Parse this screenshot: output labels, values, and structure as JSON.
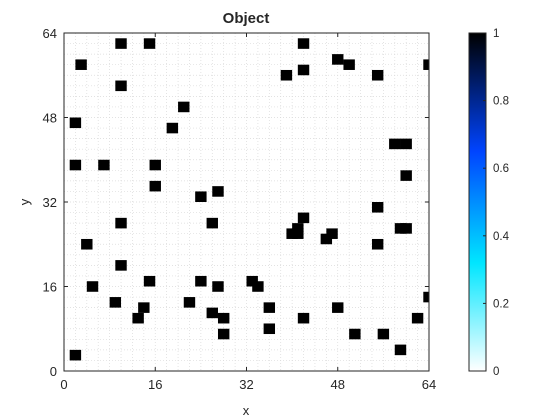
{
  "chart_data": {
    "type": "heatmap",
    "title": "Object",
    "xlabel": "x",
    "ylabel": "y",
    "xlim": [
      0,
      64
    ],
    "ylim": [
      0,
      64
    ],
    "xticks": [
      0,
      16,
      32,
      48,
      64
    ],
    "yticks": [
      0,
      16,
      32,
      48,
      64
    ],
    "grid": true,
    "colorbar": {
      "range": [
        0,
        1
      ],
      "ticks": [
        0,
        0.2,
        0.4,
        0.6,
        0.8,
        1
      ],
      "colormap": "white-cyan-blue-black",
      "colors": [
        "#ffffff",
        "#00e6ff",
        "#0044ff",
        "#000000"
      ]
    },
    "cell_value": 1,
    "cells": [
      [
        10,
        62
      ],
      [
        15,
        62
      ],
      [
        42,
        62
      ],
      [
        3,
        58
      ],
      [
        42,
        57
      ],
      [
        48,
        59
      ],
      [
        50,
        58
      ],
      [
        55,
        56
      ],
      [
        64,
        58
      ],
      [
        39,
        56
      ],
      [
        10,
        54
      ],
      [
        21,
        50
      ],
      [
        19,
        46
      ],
      [
        2,
        47
      ],
      [
        58,
        43
      ],
      [
        60,
        43
      ],
      [
        2,
        39
      ],
      [
        7,
        39
      ],
      [
        16,
        39
      ],
      [
        60,
        37
      ],
      [
        16,
        35
      ],
      [
        27,
        34
      ],
      [
        24,
        33
      ],
      [
        55,
        31
      ],
      [
        42,
        29
      ],
      [
        41,
        27
      ],
      [
        10,
        28
      ],
      [
        40,
        26
      ],
      [
        26,
        28
      ],
      [
        41,
        26
      ],
      [
        47,
        26
      ],
      [
        46,
        25
      ],
      [
        59,
        27
      ],
      [
        60,
        27
      ],
      [
        4,
        24
      ],
      [
        55,
        24
      ],
      [
        10,
        20
      ],
      [
        15,
        17
      ],
      [
        24,
        17
      ],
      [
        33,
        17
      ],
      [
        34,
        16
      ],
      [
        5,
        16
      ],
      [
        27,
        16
      ],
      [
        64,
        14
      ],
      [
        9,
        13
      ],
      [
        22,
        13
      ],
      [
        14,
        12
      ],
      [
        36,
        12
      ],
      [
        48,
        12
      ],
      [
        13,
        10
      ],
      [
        26,
        11
      ],
      [
        28,
        10
      ],
      [
        42,
        10
      ],
      [
        62,
        10
      ],
      [
        36,
        8
      ],
      [
        28,
        7
      ],
      [
        51,
        7
      ],
      [
        56,
        7
      ],
      [
        59,
        4
      ],
      [
        2,
        3
      ]
    ]
  }
}
